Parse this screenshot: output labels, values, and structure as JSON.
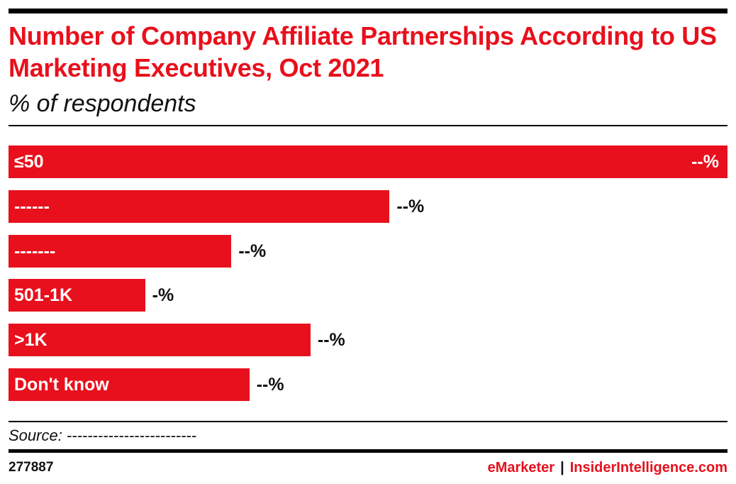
{
  "header": {
    "title": "Number of Company Affiliate Partnerships According to US Marketing Executives, Oct 2021",
    "subtitle": "% of respondents"
  },
  "chart_data": {
    "type": "bar",
    "orientation": "horizontal",
    "categories": [
      "≤50",
      "------",
      "-------",
      "501-1K",
      ">1K",
      "Don't know"
    ],
    "values": [
      100,
      53,
      31,
      19,
      42,
      33.5
    ],
    "value_labels": [
      "--%",
      "--%",
      "--%",
      "-%",
      "--%",
      "--%"
    ],
    "xlim": [
      0,
      100
    ],
    "bar_color": "#e8101c",
    "grid": false,
    "legend": "none"
  },
  "footer": {
    "source": "Source: -------------------------",
    "chart_id": "277887",
    "brand_left": "eMarketer",
    "brand_sep": "|",
    "brand_right": "InsiderIntelligence.com"
  },
  "colors": {
    "accent": "#e8101c",
    "text": "#111111"
  }
}
